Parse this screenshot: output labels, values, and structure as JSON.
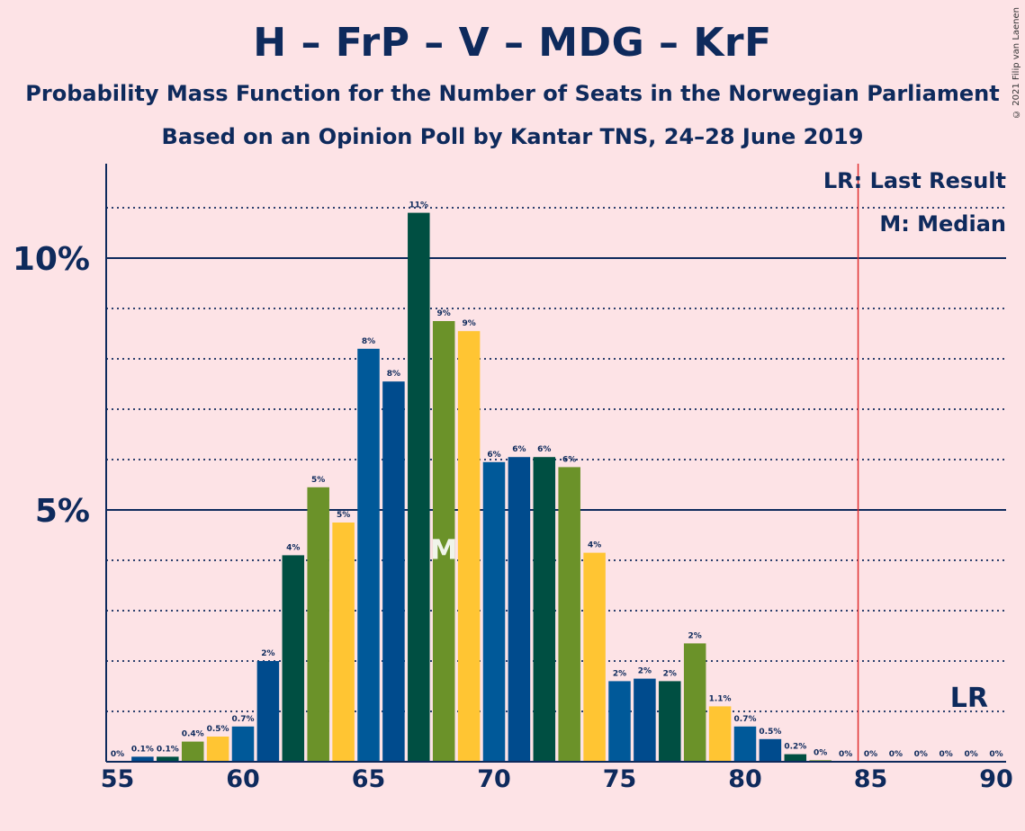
{
  "title": "H – FrP – V – MDG – KrF",
  "subtitle1": "Probability Mass Function for the Number of Seats in the Norwegian Parliament",
  "subtitle2": "Based on an Opinion Poll by Kantar TNS, 24–28 June 2019",
  "copyright": "© 2021 Filip van Laenen",
  "legend": {
    "lr": "LR: Last Result",
    "m": "M: Median"
  },
  "colors": {
    "background": "#fde3e6",
    "axis": "#0e2a5c",
    "lastResultLine": "#e03030",
    "palette": [
      "#005999",
      "#004b8d",
      "#004f42",
      "#6b9229",
      "#ffc533"
    ]
  },
  "chart_data": {
    "type": "bar",
    "x": [
      55,
      56,
      57,
      58,
      59,
      60,
      61,
      62,
      63,
      64,
      65,
      66,
      67,
      68,
      69,
      70,
      71,
      72,
      73,
      74,
      75,
      76,
      77,
      78,
      79,
      80,
      81,
      82,
      83,
      84,
      85,
      86,
      87,
      88,
      89,
      90
    ],
    "values": [
      0,
      0.1,
      0.1,
      0.4,
      0.5,
      0.7,
      2.0,
      4.1,
      5.45,
      4.75,
      8.2,
      7.55,
      10.9,
      8.75,
      8.55,
      5.95,
      6.05,
      6.05,
      5.85,
      4.15,
      1.6,
      1.65,
      1.6,
      2.35,
      1.1,
      0.7,
      0.45,
      0.15,
      0.03,
      0,
      0,
      0,
      0,
      0,
      0,
      0
    ],
    "labels": [
      "0%",
      "0.1%",
      "0.1%",
      "0.4%",
      "0.5%",
      "0.7%",
      "2%",
      "4%",
      "5%",
      "5%",
      "8%",
      "8%",
      "11%",
      "9%",
      "9%",
      "6%",
      "6%",
      "6%",
      "6%",
      "4%",
      "2%",
      "2%",
      "2%",
      "2%",
      "1.1%",
      "0.7%",
      "0.5%",
      "0.2%",
      "0%",
      "0%",
      "0%",
      "0%",
      "0%",
      "0%",
      "0%",
      "0%"
    ],
    "ylim": [
      0,
      11.9
    ],
    "yticks": [
      {
        "value": 5,
        "label": "5%"
      },
      {
        "value": 10,
        "label": "10%"
      }
    ],
    "xticks": [
      55,
      60,
      65,
      70,
      75,
      80,
      85,
      90
    ],
    "median": 68,
    "median_marker": "M",
    "last_result": 85,
    "last_result_marker": "LR"
  }
}
